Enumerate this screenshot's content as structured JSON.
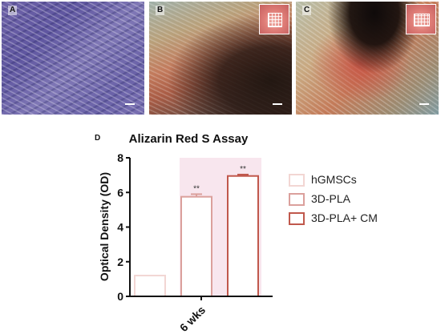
{
  "figure": {
    "panels": [
      {
        "letter": "A",
        "description_icon": "micrograph-image"
      },
      {
        "letter": "B",
        "description_icon": "micrograph-image"
      },
      {
        "letter": "C",
        "description_icon": "micrograph-image"
      }
    ],
    "chart_label": "D"
  },
  "colors": {
    "hGMSCs": "#f2d6d3",
    "3D-PLA": "#dba09c",
    "3D-PLA+ CM": "#c0584c",
    "shade": "#f8e6ee"
  },
  "chart_data": {
    "type": "bar",
    "title": "Alizarin Red S Assay",
    "xlabel": "",
    "ylabel": "Optical Density (OD)",
    "categories": [
      "6 wks"
    ],
    "ylim": [
      0,
      8
    ],
    "yticks": [
      0,
      2,
      4,
      6,
      8
    ],
    "series": [
      {
        "name": "hGMSCs",
        "values": [
          1.2
        ],
        "error": [
          0
        ],
        "annotation": ""
      },
      {
        "name": "3D-PLA",
        "values": [
          5.75
        ],
        "error": [
          0.15
        ],
        "annotation": "**"
      },
      {
        "name": "3D-PLA+ CM",
        "values": [
          6.95
        ],
        "error": [
          0.08
        ],
        "annotation": "**"
      }
    ],
    "legend_position": "right",
    "grid": false
  }
}
